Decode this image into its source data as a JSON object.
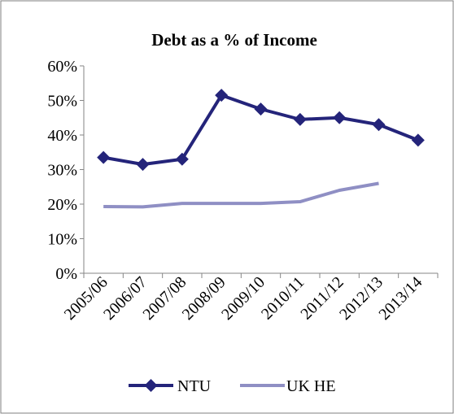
{
  "chart_data": {
    "type": "line",
    "title": "Debt as a % of Income",
    "xlabel": "",
    "ylabel": "",
    "categories": [
      "2005/06",
      "2006/07",
      "2007/08",
      "2008/09",
      "2009/10",
      "2010/11",
      "2011/12",
      "2012/13",
      "2013/14"
    ],
    "y_ticks": [
      "0%",
      "10%",
      "20%",
      "30%",
      "40%",
      "50%",
      "60%"
    ],
    "ylim": [
      0,
      60
    ],
    "grid": false,
    "legend_position": "bottom",
    "series": [
      {
        "name": "NTU",
        "color": "#24247a",
        "marker": "diamond",
        "values": [
          33.5,
          31.5,
          33,
          51.5,
          47.5,
          44.5,
          45,
          43,
          38.5
        ]
      },
      {
        "name": "UK HE",
        "color": "#8f8fc4",
        "marker": "none",
        "values": [
          19.3,
          19.2,
          20.2,
          20.2,
          20.2,
          20.7,
          24,
          26,
          null
        ]
      }
    ]
  }
}
